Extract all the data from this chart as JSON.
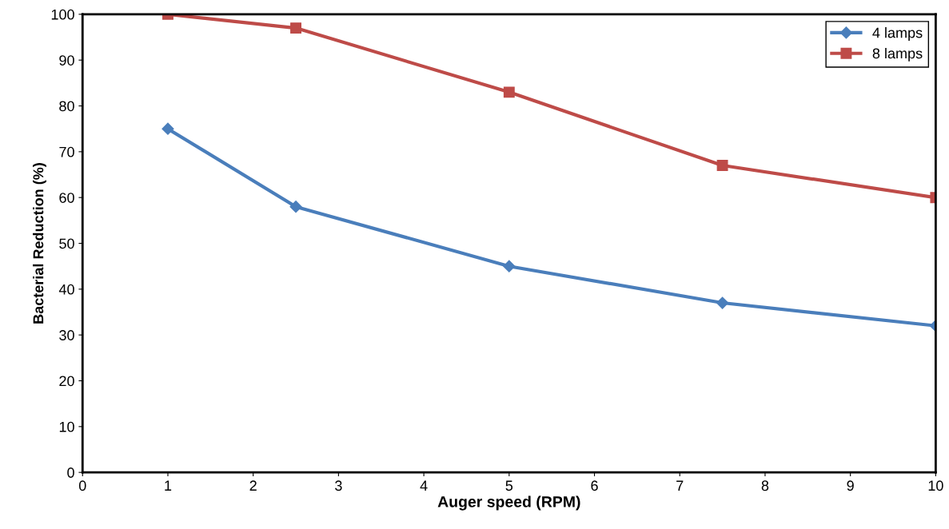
{
  "chart_data": {
    "type": "line",
    "xlabel": "Auger speed (RPM)",
    "ylabel": "Bacterial Reduction (%)",
    "x": [
      1,
      2.5,
      5,
      7.5,
      10
    ],
    "series": [
      {
        "name": "4 lamps",
        "color": "#4a7ebb",
        "marker": "diamond",
        "values": [
          75,
          58,
          45,
          37,
          32
        ]
      },
      {
        "name": "8 lamps",
        "color": "#be4b48",
        "marker": "square",
        "values": [
          100,
          97,
          83,
          67,
          60
        ]
      }
    ],
    "xlim": [
      0,
      10
    ],
    "xticks": [
      0,
      1,
      2,
      3,
      4,
      5,
      6,
      7,
      8,
      9,
      10
    ],
    "ylim": [
      0,
      100
    ],
    "yticks": [
      0,
      10,
      20,
      30,
      40,
      50,
      60,
      70,
      80,
      90,
      100
    ],
    "grid": false,
    "legend": "top right",
    "line_style": "solid"
  }
}
